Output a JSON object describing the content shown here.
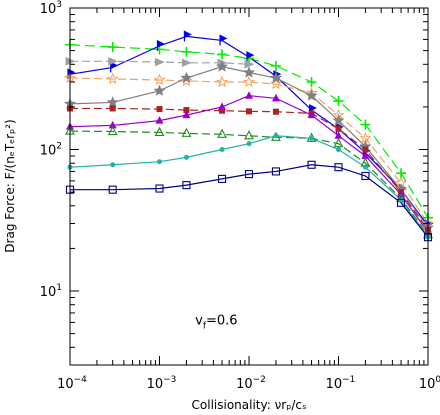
{
  "chart_data": {
    "type": "line",
    "xlabel": "Collisionality: νrₚ/cₛ",
    "ylabel": "Drag Force: F/(nₑTₑrₚ²)",
    "x_scale": "log",
    "y_scale": "log",
    "xlim": [
      0.0001,
      1
    ],
    "ylim": [
      3,
      1000
    ],
    "x_ticks": [
      {
        "value": 0.0001,
        "base": "10",
        "exp": "−4"
      },
      {
        "value": 0.001,
        "base": "10",
        "exp": "−3"
      },
      {
        "value": 0.01,
        "base": "10",
        "exp": "−2"
      },
      {
        "value": 0.1,
        "base": "10",
        "exp": "−1"
      },
      {
        "value": 1,
        "base": "10",
        "exp": "0"
      }
    ],
    "y_ticks": [
      {
        "value": 10,
        "base": "10",
        "exp": "1"
      },
      {
        "value": 100,
        "base": "10",
        "exp": "2"
      },
      {
        "value": 1000,
        "base": "10",
        "exp": "3"
      }
    ],
    "annotation": {
      "text": "v",
      "sub": "f",
      "rest": "=0.6",
      "x": 0.0025,
      "y": 5.8
    },
    "grid": false,
    "series": [
      {
        "color": "#00ee00",
        "dash": "10,5",
        "marker": "plus",
        "x": [
          0.0001,
          0.0003,
          0.001,
          0.002,
          0.005,
          0.01,
          0.02,
          0.05,
          0.1,
          0.2,
          0.5,
          1
        ],
        "y": [
          550,
          530,
          510,
          490,
          470,
          440,
          390,
          300,
          220,
          150,
          68,
          33
        ]
      },
      {
        "color": "#0000ee",
        "dash": "",
        "marker": "flag",
        "x": [
          0.0001,
          0.0003,
          0.001,
          0.002,
          0.005,
          0.01,
          0.02,
          0.05,
          0.1,
          0.2,
          0.5,
          1
        ],
        "y": [
          340,
          380,
          540,
          630,
          590,
          450,
          330,
          190,
          140,
          95,
          52,
          29
        ]
      },
      {
        "color": "#a0a0a0",
        "dash": "8,4",
        "marker": "arrow",
        "x": [
          0.0001,
          0.0003,
          0.001,
          0.002,
          0.005,
          0.01
        ],
        "y": [
          420,
          420,
          415,
          410,
          410,
          400
        ]
      },
      {
        "color": "#f4a460",
        "dash": "8,4",
        "marker": "star-open",
        "x": [
          0.0001,
          0.0003,
          0.001,
          0.002,
          0.005,
          0.01,
          0.02,
          0.05,
          0.1,
          0.2,
          0.5,
          1
        ],
        "y": [
          320,
          315,
          310,
          305,
          300,
          300,
          290,
          250,
          175,
          120,
          58,
          30
        ]
      },
      {
        "color": "#808080",
        "dash": "",
        "marker": "star",
        "x": [
          0.0001,
          0.0003,
          0.001,
          0.002,
          0.005,
          0.01,
          0.02,
          0.05,
          0.1,
          0.2,
          0.5,
          1
        ],
        "y": [
          210,
          215,
          260,
          320,
          385,
          350,
          320,
          240,
          160,
          105,
          52,
          28
        ]
      },
      {
        "color": "#aa2222",
        "dash": "8,4",
        "marker": "square",
        "x": [
          0.0001,
          0.0003,
          0.001,
          0.002,
          0.005,
          0.01,
          0.02,
          0.05,
          0.1,
          0.2,
          0.5,
          1
        ],
        "y": [
          195,
          195,
          193,
          190,
          188,
          186,
          185,
          180,
          140,
          100,
          50,
          27
        ]
      },
      {
        "color": "#9900cc",
        "dash": "",
        "marker": "triangle",
        "x": [
          0.0001,
          0.0003,
          0.001,
          0.002,
          0.005,
          0.01,
          0.02,
          0.05,
          0.1,
          0.2,
          0.5,
          1
        ],
        "y": [
          145,
          148,
          160,
          175,
          200,
          240,
          230,
          175,
          125,
          90,
          48,
          26
        ]
      },
      {
        "color": "#228b22",
        "dash": "8,4",
        "marker": "triangle-open",
        "x": [
          0.0001,
          0.0003,
          0.001,
          0.002,
          0.005,
          0.01,
          0.02,
          0.05,
          0.1,
          0.2,
          0.5,
          1
        ],
        "y": [
          135,
          134,
          132,
          130,
          128,
          125,
          122,
          120,
          110,
          80,
          45,
          25
        ]
      },
      {
        "color": "#20b2aa",
        "dash": "",
        "marker": "dot",
        "x": [
          0.0001,
          0.0003,
          0.001,
          0.002,
          0.005,
          0.01,
          0.02,
          0.05,
          0.1,
          0.2,
          0.5,
          1
        ],
        "y": [
          75,
          78,
          82,
          88,
          100,
          110,
          125,
          120,
          100,
          75,
          44,
          24
        ]
      },
      {
        "color": "#000080",
        "dash": "",
        "marker": "square-open",
        "x": [
          0.0001,
          0.0003,
          0.001,
          0.002,
          0.005,
          0.01,
          0.02,
          0.05,
          0.1,
          0.2,
          0.5,
          1
        ],
        "y": [
          52,
          52,
          53,
          56,
          62,
          67,
          70,
          78,
          75,
          65,
          42,
          24
        ]
      }
    ]
  }
}
